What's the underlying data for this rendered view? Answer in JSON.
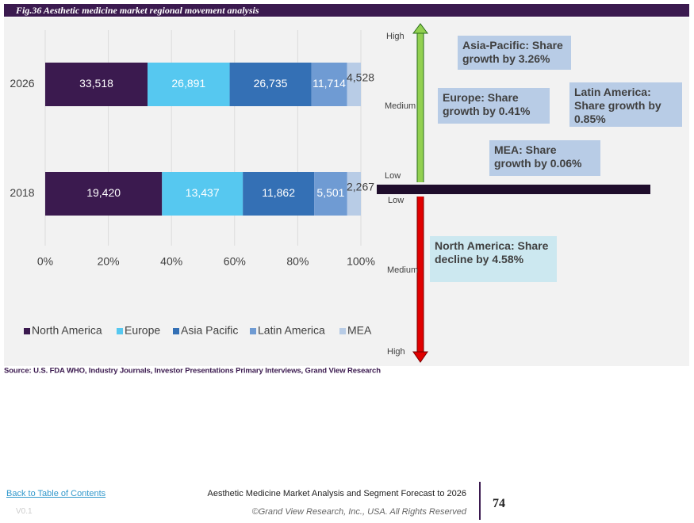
{
  "figure_caption": "Fig.36  Aesthetic medicine market regional movement analysis",
  "chart_data": {
    "type": "stacked_bar_100",
    "orientation": "horizontal",
    "categories": [
      "2026",
      "2018"
    ],
    "series": [
      {
        "name": "North America",
        "color": "#3b1a4f",
        "values": [
          33518,
          19420
        ],
        "value_labels": [
          "33,518",
          "19,420"
        ]
      },
      {
        "name": "Europe",
        "color": "#56c8f0",
        "values": [
          26891,
          13437
        ],
        "value_labels": [
          "26,891",
          "13,437"
        ]
      },
      {
        "name": "Asia Pacific",
        "color": "#3470b5",
        "values": [
          26735,
          11862
        ],
        "value_labels": [
          "26,735",
          "11,862"
        ]
      },
      {
        "name": "Latin America",
        "color": "#6f9bd3",
        "values": [
          11714,
          5501
        ],
        "value_labels": [
          "11,714",
          "5,501"
        ]
      },
      {
        "name": "MEA",
        "color": "#b8cce6",
        "values": [
          4528,
          2267
        ],
        "value_labels": [
          "4,528",
          "2,267"
        ]
      }
    ],
    "xlim": [
      0,
      100
    ],
    "xticks": [
      {
        "value": 0,
        "label": "0%"
      },
      {
        "value": 20,
        "label": "20%"
      },
      {
        "value": 40,
        "label": "40%"
      },
      {
        "value": 60,
        "label": "60%"
      },
      {
        "value": 80,
        "label": "80%"
      },
      {
        "value": 100,
        "label": "100%"
      }
    ],
    "grid": true,
    "legend": "bottom"
  },
  "movement": {
    "scale_labels": [
      "High",
      "Medium",
      "Low",
      "Low",
      "Medium",
      "High"
    ],
    "annotations": [
      "Asia-Pacific: Share growth by 3.26%",
      "Europe: Share growth by 0.41%",
      "Latin America: Share growth by 0.85%",
      "MEA: Share growth by 0.06%",
      "North America: Share decline by 4.58%"
    ]
  },
  "source": "Source: U.S. FDA WHO, Industry Journals, Investor Presentations Primary Interviews, Grand View Research",
  "footer": {
    "link": "Back to Table of Contents",
    "version": "V0.1",
    "report_title": "Aesthetic Medicine Market Analysis and Segment Forecast to 2026",
    "copyright": "©Grand View Research, Inc., USA. All Rights Reserved",
    "page_number": "74"
  }
}
